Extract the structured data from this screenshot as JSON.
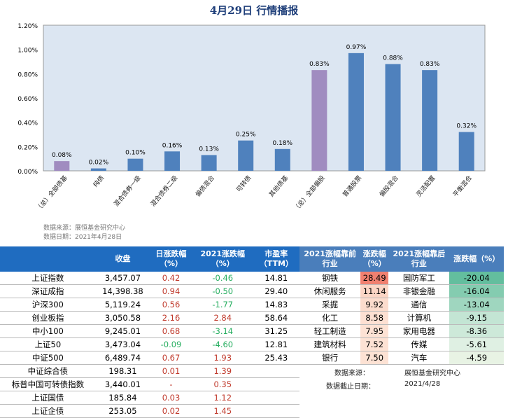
{
  "title": "4月29日 行情播报",
  "chart_data": {
    "type": "bar",
    "ylim": [
      0,
      1.2
    ],
    "yticks": [
      "0.00%",
      "0.20%",
      "0.40%",
      "0.60%",
      "0.80%",
      "1.00%",
      "1.20%"
    ],
    "categories": [
      "（总）全部债基",
      "纯债",
      "混合债券一级",
      "混合债券二级",
      "偏债混合",
      "可转债",
      "其他债基",
      "（总）全部偏股",
      "普通股票",
      "偏股混合",
      "灵活配置",
      "平衡混合"
    ],
    "values": [
      0.08,
      0.02,
      0.1,
      0.16,
      0.13,
      0.25,
      0.18,
      0.83,
      0.97,
      0.88,
      0.83,
      0.32
    ],
    "labels": [
      "0.08%",
      "0.02%",
      "0.10%",
      "0.16%",
      "0.13%",
      "0.25%",
      "0.18%",
      "0.83%",
      "0.97%",
      "0.88%",
      "0.83%",
      "0.32%"
    ],
    "colors": [
      "#a08cc0",
      "#4f81bd",
      "#4f81bd",
      "#4f81bd",
      "#4f81bd",
      "#4f81bd",
      "#4f81bd",
      "#a08cc0",
      "#4f81bd",
      "#4f81bd",
      "#4f81bd",
      "#4f81bd"
    ],
    "plot_bg": "#dce6f2",
    "grid": false
  },
  "chart_source": "数据来源：展恒基金研究中心",
  "chart_date": "数据日期：2021年4月28日",
  "index_table": {
    "headers": [
      "",
      "收盘",
      "日涨跌幅\n（%）",
      "2021涨跌幅\n（%）",
      "市盈率\n（TTM）"
    ],
    "rows": [
      [
        "上证指数",
        "3,457.07",
        "0.42",
        "-0.46",
        "14.81"
      ],
      [
        "深证成指",
        "14,398.38",
        "0.94",
        "-0.50",
        "29.40"
      ],
      [
        "沪深300",
        "5,119.24",
        "0.56",
        "-1.77",
        "14.83"
      ],
      [
        "创业板指",
        "3,050.58",
        "2.16",
        "2.84",
        "58.64"
      ],
      [
        "中小100",
        "9,245.01",
        "0.68",
        "-3.14",
        "31.25"
      ],
      [
        "上证50",
        "3,473.04",
        "-0.09",
        "-4.60",
        "12.81"
      ],
      [
        "中证500",
        "6,489.74",
        "0.67",
        "1.93",
        "25.43"
      ],
      [
        "中证综合债",
        "198.31",
        "0.01",
        "1.39",
        ""
      ],
      [
        "标普中国可转债指数",
        "3,440.01",
        "-",
        "0.35",
        ""
      ],
      [
        "上证国债",
        "185.84",
        "0.03",
        "1.12",
        ""
      ],
      [
        "上证企债",
        "253.05",
        "0.02",
        "1.45",
        ""
      ]
    ]
  },
  "industry_table": {
    "headers": [
      "2021涨幅靠前\n行业",
      "涨跌幅\n（%）",
      "2021涨幅靠后\n行业",
      "涨跌幅（%）"
    ],
    "rows": [
      [
        "钢铁",
        "28.49",
        "国防军工",
        "-20.04"
      ],
      [
        "休闲服务",
        "11.14",
        "非银金融",
        "-16.04"
      ],
      [
        "采掘",
        "9.92",
        "通信",
        "-13.04"
      ],
      [
        "化工",
        "8.58",
        "计算机",
        "-9.15"
      ],
      [
        "轻工制造",
        "7.95",
        "家用电器",
        "-8.36"
      ],
      [
        "建筑材料",
        "7.52",
        "传媒",
        "-5.61"
      ],
      [
        "银行",
        "7.50",
        "汽车",
        "-4.59"
      ]
    ],
    "top_colors": [
      "#f08070",
      "#fbd5c5",
      "#fcdccd",
      "#fde0d2",
      "#fde2d4",
      "#fde2d4",
      "#fde2d4"
    ],
    "bottom_colors": [
      "#63be9e",
      "#84ccb0",
      "#9fd6bf",
      "#c3e5d4",
      "#cde9d9",
      "#dff0e3",
      "#e8f3e4"
    ]
  },
  "source_label": "数据来源：",
  "source_value": "展恒基金研究中心",
  "date_label": "数据截止日期：",
  "date_value": "2021/4/28"
}
